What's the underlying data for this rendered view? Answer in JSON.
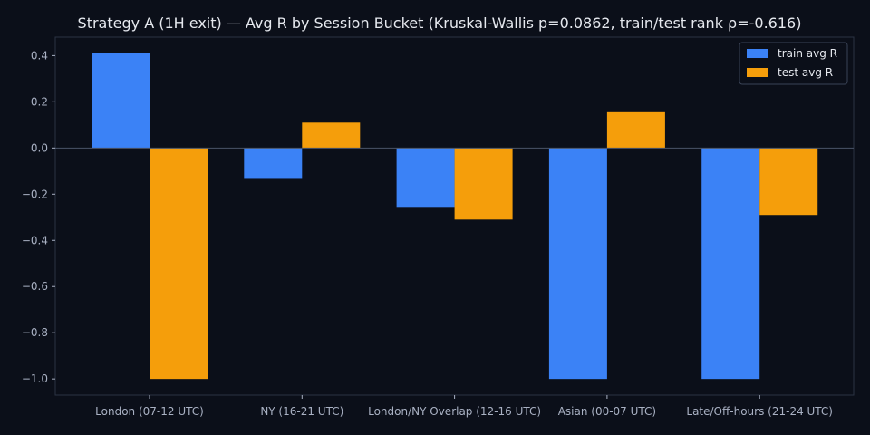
{
  "chart_data": {
    "type": "bar",
    "title": "Strategy A (1H exit) — Avg R by Session Bucket (Kruskal-Wallis p=0.0862, train/test rank ρ=-0.616)",
    "xlabel": "",
    "ylabel": "",
    "categories": [
      "London (07-12 UTC)",
      "NY (16-21 UTC)",
      "London/NY Overlap (12-16 UTC)",
      "Asian (00-07 UTC)",
      "Late/Off-hours (21-24 UTC)"
    ],
    "series": [
      {
        "name": "train avg R",
        "color": "#3b82f6",
        "values": [
          0.41,
          -0.13,
          -0.255,
          -1.0,
          -1.0
        ]
      },
      {
        "name": "test avg R",
        "color": "#f59e0b",
        "values": [
          -1.0,
          0.11,
          -0.31,
          0.155,
          -0.29
        ]
      }
    ],
    "ylim": [
      -1.07,
      0.48
    ],
    "yticks": [
      "0.4",
      "0.2",
      "0.0",
      "−0.2",
      "−0.4",
      "−0.6",
      "−0.8",
      "−1.0"
    ],
    "ytick_values": [
      0.4,
      0.2,
      0.0,
      -0.2,
      -0.4,
      -0.6,
      -0.8,
      -1.0
    ],
    "legend_position": "top-right",
    "grid": false,
    "colors": {
      "background": "#0b0f19",
      "axes": "#2b3344",
      "zero_line": "#4a5468"
    }
  }
}
